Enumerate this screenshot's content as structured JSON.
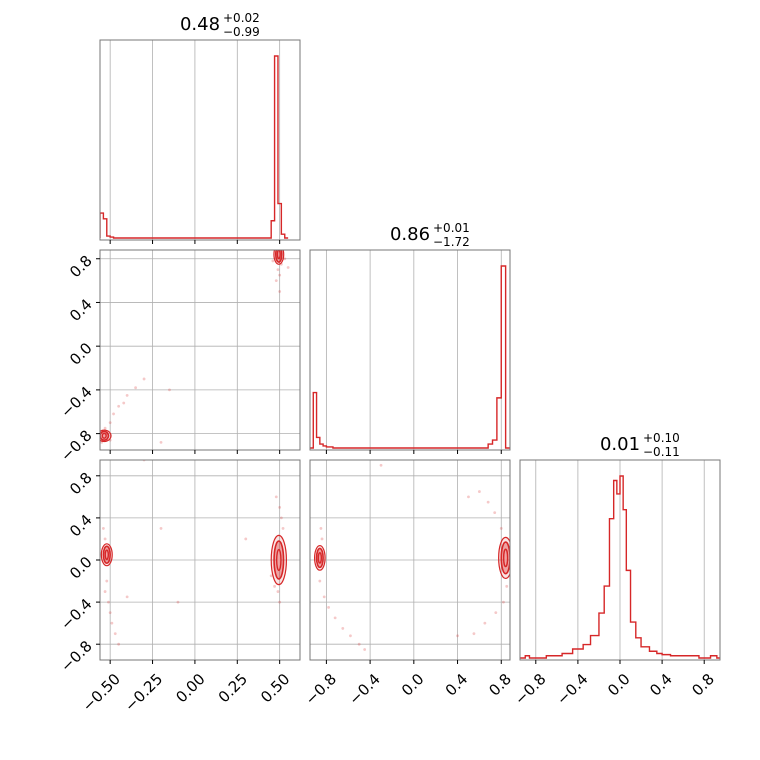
{
  "chart_data": {
    "type": "corner",
    "color": "#d62728",
    "grid": true,
    "parameters": [
      {
        "title_value": "0.48",
        "title_plus": "+0.02",
        "title_minus": "−0.99",
        "range": [
          -0.56,
          0.62
        ],
        "ticks": [
          -0.5,
          -0.25,
          0.0,
          0.25,
          0.5
        ],
        "tick_labels": [
          "−0.50",
          "−0.25",
          "0.00",
          "0.25",
          "0.50"
        ]
      },
      {
        "title_value": "0.86",
        "title_plus": "+0.01",
        "title_minus": "−1.72",
        "range": [
          -0.95,
          0.88
        ],
        "ticks": [
          -0.8,
          -0.4,
          0.0,
          0.4,
          0.8
        ],
        "tick_labels": [
          "−0.8",
          "−0.4",
          "0.0",
          "0.4",
          "0.8"
        ]
      },
      {
        "title_value": "0.01",
        "title_plus": "+0.10",
        "title_minus": "−0.11",
        "range": [
          -0.95,
          0.95
        ],
        "ticks": [
          -0.8,
          -0.4,
          0.0,
          0.4,
          0.8
        ],
        "tick_labels": [
          "−0.8",
          "−0.4",
          "0.0",
          "0.4",
          "0.8"
        ]
      }
    ],
    "histograms": [
      {
        "param": 0,
        "bin_edges": [
          -0.56,
          -0.54,
          -0.52,
          -0.5,
          -0.48,
          0.45,
          0.47,
          0.49,
          0.51,
          0.53,
          0.55
        ],
        "counts": [
          0.13,
          0.1,
          0.01,
          0.005,
          0.0,
          0.09,
          0.95,
          0.18,
          0.02,
          0.0
        ]
      },
      {
        "param": 1,
        "bin_edges": [
          -0.95,
          -0.92,
          -0.89,
          -0.86,
          -0.83,
          -0.8,
          -0.74,
          0.68,
          0.72,
          0.76,
          0.8,
          0.84,
          0.88
        ],
        "counts": [
          0.0,
          0.21,
          0.04,
          0.015,
          0.008,
          0.004,
          0.0,
          0.015,
          0.03,
          0.19,
          0.69,
          0.0
        ]
      },
      {
        "param": 2,
        "bin_edges": [
          -0.95,
          -0.9,
          -0.86,
          -0.7,
          -0.55,
          -0.45,
          -0.35,
          -0.28,
          -0.2,
          -0.15,
          -0.1,
          -0.06,
          -0.03,
          0.0,
          0.03,
          0.06,
          0.1,
          0.15,
          0.2,
          0.28,
          0.35,
          0.4,
          0.48,
          0.6,
          0.75,
          0.86,
          0.92,
          0.95
        ],
        "counts": [
          0.0,
          0.01,
          0.0,
          0.01,
          0.02,
          0.04,
          0.06,
          0.1,
          0.2,
          0.32,
          0.62,
          0.79,
          0.73,
          0.81,
          0.66,
          0.39,
          0.16,
          0.09,
          0.05,
          0.03,
          0.02,
          0.015,
          0.01,
          0.01,
          0.0,
          0.01,
          0.0
        ]
      }
    ],
    "pairs": [
      {
        "x_param": 0,
        "y_param": 1,
        "modes": [
          {
            "cx": 0.495,
            "cy": 0.84,
            "rx": 0.018,
            "ry": 0.07
          },
          {
            "cx": -0.535,
            "cy": -0.82,
            "rx": 0.025,
            "ry": 0.04
          }
        ],
        "samples": [
          [
            0.47,
            0.92
          ],
          [
            0.52,
            0.91
          ],
          [
            0.51,
            0.75
          ],
          [
            0.49,
            0.7
          ],
          [
            0.53,
            0.8
          ],
          [
            0.48,
            0.6
          ],
          [
            0.55,
            0.72
          ],
          [
            0.5,
            0.65
          ],
          [
            0.46,
            0.78
          ],
          [
            -0.53,
            -0.75
          ],
          [
            -0.5,
            -0.7
          ],
          [
            -0.48,
            -0.62
          ],
          [
            -0.45,
            -0.55
          ],
          [
            -0.4,
            -0.45
          ],
          [
            -0.35,
            -0.38
          ],
          [
            -0.3,
            -0.3
          ],
          [
            -0.52,
            -0.8
          ],
          [
            -0.55,
            -0.88
          ],
          [
            -0.5,
            -0.86
          ],
          [
            -0.2,
            -0.88
          ],
          [
            -0.15,
            -0.4
          ],
          [
            -0.42,
            -0.52
          ],
          [
            0.5,
            0.5
          ]
        ]
      },
      {
        "x_param": 0,
        "y_param": 2,
        "modes": [
          {
            "cx": -0.52,
            "cy": 0.05,
            "rx": 0.02,
            "ry": 0.08
          },
          {
            "cx": 0.495,
            "cy": 0.0,
            "rx": 0.028,
            "ry": 0.18
          }
        ],
        "samples": [
          [
            -0.54,
            0.3
          ],
          [
            -0.53,
            0.2
          ],
          [
            -0.52,
            -0.2
          ],
          [
            -0.53,
            -0.3
          ],
          [
            -0.51,
            -0.4
          ],
          [
            -0.5,
            -0.5
          ],
          [
            -0.49,
            -0.6
          ],
          [
            -0.47,
            -0.7
          ],
          [
            -0.45,
            -0.8
          ],
          [
            -0.3,
            0.95
          ],
          [
            -0.1,
            -0.4
          ],
          [
            -0.2,
            0.3
          ],
          [
            0.48,
            0.6
          ],
          [
            0.5,
            0.5
          ],
          [
            0.51,
            0.4
          ],
          [
            0.49,
            -0.3
          ],
          [
            0.5,
            -0.4
          ],
          [
            0.47,
            -0.25
          ],
          [
            0.52,
            0.3
          ],
          [
            0.45,
            -0.15
          ],
          [
            0.3,
            0.2
          ],
          [
            -0.4,
            -0.35
          ]
        ]
      },
      {
        "x_param": 1,
        "y_param": 2,
        "modes": [
          {
            "cx": -0.86,
            "cy": 0.02,
            "rx": 0.03,
            "ry": 0.09
          },
          {
            "cx": 0.84,
            "cy": 0.02,
            "rx": 0.04,
            "ry": 0.15
          }
        ],
        "samples": [
          [
            -0.85,
            0.3
          ],
          [
            -0.84,
            0.2
          ],
          [
            -0.86,
            -0.2
          ],
          [
            -0.82,
            -0.35
          ],
          [
            -0.78,
            -0.45
          ],
          [
            -0.72,
            -0.55
          ],
          [
            -0.65,
            -0.65
          ],
          [
            -0.58,
            -0.72
          ],
          [
            -0.5,
            -0.8
          ],
          [
            -0.45,
            -0.85
          ],
          [
            -0.3,
            0.9
          ],
          [
            0.6,
            0.65
          ],
          [
            0.68,
            0.55
          ],
          [
            0.74,
            0.45
          ],
          [
            0.8,
            0.3
          ],
          [
            0.85,
            -0.25
          ],
          [
            0.82,
            -0.4
          ],
          [
            0.75,
            -0.5
          ],
          [
            0.65,
            -0.6
          ],
          [
            0.55,
            -0.7
          ],
          [
            0.5,
            0.6
          ],
          [
            0.4,
            -0.72
          ]
        ]
      }
    ]
  }
}
